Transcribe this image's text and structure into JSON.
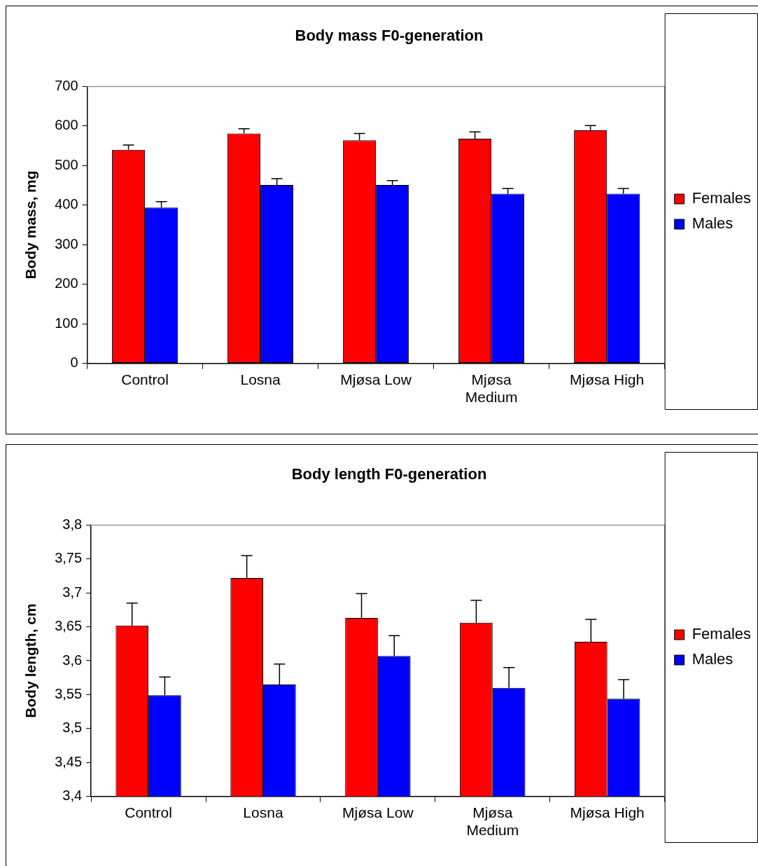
{
  "chart_data": [
    {
      "type": "bar",
      "title": "Body mass F0-generation",
      "ylabel": "Body mass, mg",
      "categories": [
        "Control",
        "Losna",
        "Mjøsa Low",
        "Mjøsa\nMedium",
        "Mjøsa High"
      ],
      "series": [
        {
          "name": "Females",
          "color": "#ff0000",
          "values": [
            540,
            581,
            564,
            568,
            589
          ],
          "errors": [
            [
              540,
              552
            ],
            [
              581,
              593
            ],
            [
              564,
              581
            ],
            [
              568,
              585
            ],
            [
              589,
              601
            ]
          ]
        },
        {
          "name": "Males",
          "color": "#0000ff",
          "values": [
            394,
            451,
            451,
            429,
            429
          ],
          "errors": [
            [
              394,
              409
            ],
            [
              451,
              467
            ],
            [
              451,
              462
            ],
            [
              429,
              442
            ],
            [
              429,
              442
            ]
          ]
        }
      ],
      "ylim": [
        0,
        700
      ],
      "yticks": [
        0,
        100,
        200,
        300,
        400,
        500,
        600,
        700
      ],
      "grid": false,
      "legend": "right"
    },
    {
      "type": "bar",
      "title": "Body length F0-generation",
      "ylabel": "Body length, cm",
      "categories": [
        "Control",
        "Losna",
        "Mjøsa Low",
        "Mjøsa\nMedium",
        "Mjøsa High"
      ],
      "series": [
        {
          "name": "Females",
          "color": "#ff0000",
          "values": [
            3.652,
            3.722,
            3.663,
            3.656,
            3.628
          ],
          "errors": [
            [
              3.652,
              3.685
            ],
            [
              3.722,
              3.755
            ],
            [
              3.663,
              3.699
            ],
            [
              3.656,
              3.689
            ],
            [
              3.628,
              3.661
            ]
          ]
        },
        {
          "name": "Males",
          "color": "#0000ff",
          "values": [
            3.549,
            3.565,
            3.607,
            3.56,
            3.544
          ],
          "errors": [
            [
              3.549,
              3.576
            ],
            [
              3.565,
              3.595
            ],
            [
              3.607,
              3.637
            ],
            [
              3.56,
              3.59
            ],
            [
              3.544,
              3.572
            ]
          ]
        }
      ],
      "ylim": [
        3.4,
        3.8
      ],
      "yticks": [
        {
          "value": 3.4,
          "label": "3,4"
        },
        {
          "value": 3.45,
          "label": "3,45"
        },
        {
          "value": 3.5,
          "label": "3,5"
        },
        {
          "value": 3.55,
          "label": "3,55"
        },
        {
          "value": 3.6,
          "label": "3,6"
        },
        {
          "value": 3.65,
          "label": "3,65"
        },
        {
          "value": 3.7,
          "label": "3,7"
        },
        {
          "value": 3.75,
          "label": "3,75"
        },
        {
          "value": 3.8,
          "label": "3,8"
        }
      ],
      "grid": false,
      "legend": "right"
    }
  ]
}
